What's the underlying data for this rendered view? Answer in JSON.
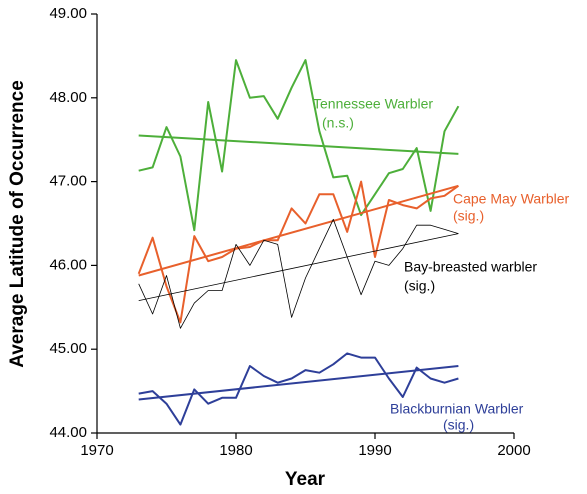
{
  "chart_data": {
    "type": "line",
    "x_label": "Year",
    "y_label": "Average Latitude of Occurrence",
    "x": [
      1973,
      1974,
      1975,
      1976,
      1977,
      1978,
      1979,
      1980,
      1981,
      1982,
      1983,
      1984,
      1985,
      1986,
      1987,
      1988,
      1989,
      1990,
      1991,
      1992,
      1993,
      1994,
      1995,
      1996
    ],
    "xlim": [
      1970,
      2000
    ],
    "xticks": [
      1970,
      1980,
      1990,
      2000
    ],
    "ylim": [
      44,
      49
    ],
    "yticks": [
      {
        "value": 44,
        "label": "44.00"
      },
      {
        "value": 45,
        "label": "45.00"
      },
      {
        "value": 46,
        "label": "46.00"
      },
      {
        "value": 47,
        "label": "47.00"
      },
      {
        "value": 48,
        "label": "48.00"
      },
      {
        "value": 49,
        "label": "49.00"
      }
    ],
    "series": [
      {
        "name": "Tennessee Warbler",
        "note": "(n.s.)",
        "color": "#4daf3a",
        "values": [
          47.13,
          47.17,
          47.65,
          47.3,
          46.42,
          47.95,
          47.12,
          48.45,
          48.0,
          48.02,
          47.75,
          48.12,
          48.45,
          47.6,
          47.05,
          47.07,
          46.6,
          46.85,
          47.1,
          47.15,
          47.4,
          46.65,
          47.6,
          47.9
        ],
        "trend": {
          "x": [
            1973,
            1996
          ],
          "values": [
            47.55,
            47.33
          ]
        }
      },
      {
        "name": "Cape May Warbler",
        "note": "(sig.)",
        "color": "#e8602c",
        "values": [
          45.9,
          46.33,
          45.75,
          45.32,
          46.35,
          46.05,
          46.1,
          46.2,
          46.22,
          46.3,
          46.3,
          46.68,
          46.5,
          46.85,
          46.85,
          46.4,
          47.0,
          46.1,
          46.78,
          46.72,
          46.68,
          46.8,
          46.83,
          46.95
        ],
        "trend": {
          "x": [
            1973,
            1996
          ],
          "values": [
            45.88,
            46.95
          ]
        }
      },
      {
        "name": "Bay-breasted warbler",
        "note": "(sig.)",
        "color": "#000000",
        "values": [
          45.78,
          45.42,
          45.88,
          45.25,
          45.55,
          45.7,
          45.7,
          46.25,
          46.0,
          46.3,
          46.25,
          45.38,
          45.85,
          46.2,
          46.55,
          46.1,
          45.65,
          46.05,
          46.0,
          46.2,
          46.48,
          46.48,
          46.43,
          46.38
        ],
        "trend": {
          "x": [
            1973,
            1996
          ],
          "values": [
            45.58,
            46.38
          ]
        }
      },
      {
        "name": "Blackburnian Warbler",
        "note": "(sig.)",
        "color": "#2e3f99",
        "values": [
          44.47,
          44.5,
          44.35,
          44.1,
          44.52,
          44.35,
          44.42,
          44.42,
          44.8,
          44.68,
          44.6,
          44.65,
          44.75,
          44.72,
          44.82,
          44.95,
          44.9,
          44.9,
          44.65,
          44.43,
          44.78,
          44.65,
          44.6,
          44.65
        ],
        "trend": {
          "x": [
            1973,
            1996
          ],
          "values": [
            44.4,
            44.8
          ]
        }
      }
    ]
  }
}
